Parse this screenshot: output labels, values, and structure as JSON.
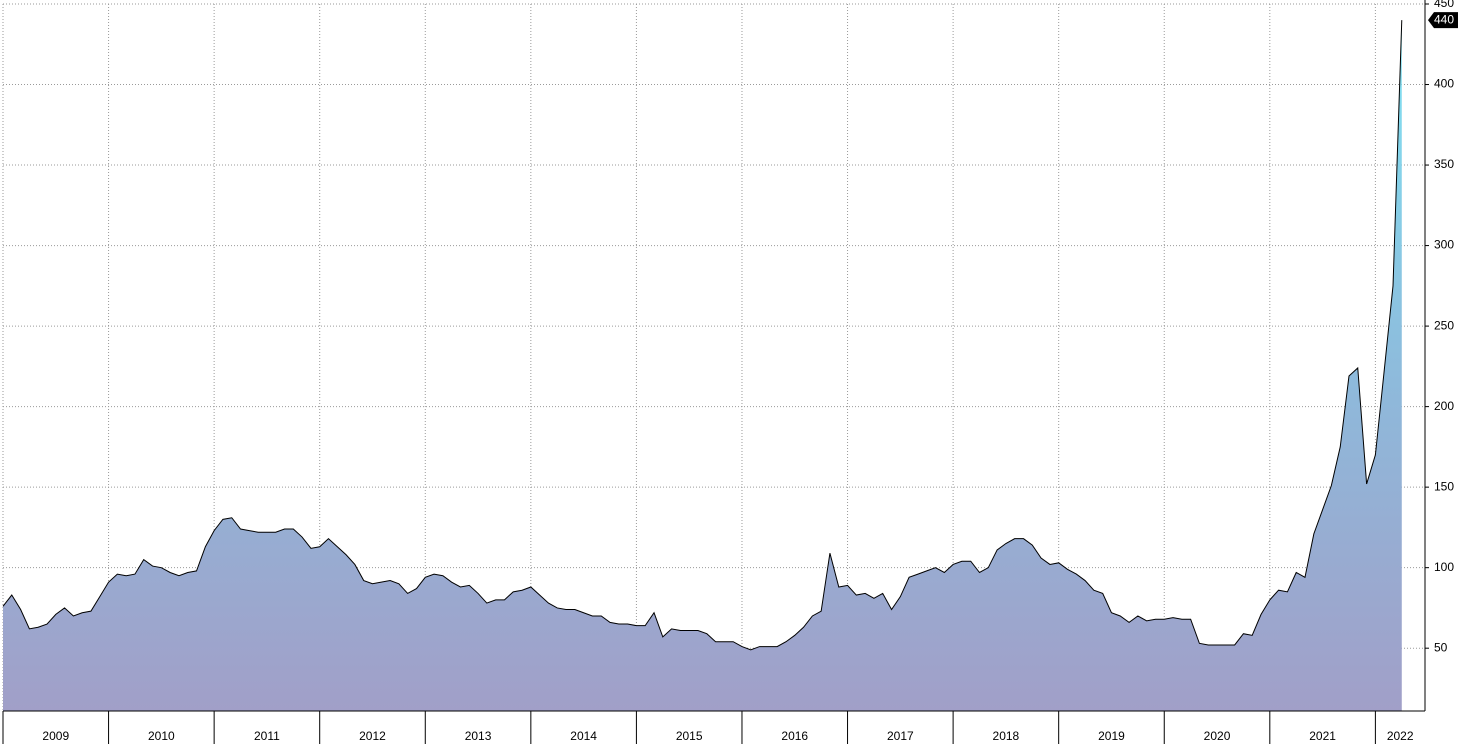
{
  "chart_data": {
    "type": "area",
    "x": [
      2009.0,
      2009.083,
      2009.167,
      2009.25,
      2009.333,
      2009.417,
      2009.5,
      2009.583,
      2009.667,
      2009.75,
      2009.833,
      2009.917,
      2010.0,
      2010.083,
      2010.167,
      2010.25,
      2010.333,
      2010.417,
      2010.5,
      2010.583,
      2010.667,
      2010.75,
      2010.833,
      2010.917,
      2011.0,
      2011.083,
      2011.167,
      2011.25,
      2011.333,
      2011.417,
      2011.5,
      2011.583,
      2011.667,
      2011.75,
      2011.833,
      2011.917,
      2012.0,
      2012.083,
      2012.167,
      2012.25,
      2012.333,
      2012.417,
      2012.5,
      2012.583,
      2012.667,
      2012.75,
      2012.833,
      2012.917,
      2013.0,
      2013.083,
      2013.167,
      2013.25,
      2013.333,
      2013.417,
      2013.5,
      2013.583,
      2013.667,
      2013.75,
      2013.833,
      2013.917,
      2014.0,
      2014.083,
      2014.167,
      2014.25,
      2014.333,
      2014.417,
      2014.5,
      2014.583,
      2014.667,
      2014.75,
      2014.833,
      2014.917,
      2015.0,
      2015.083,
      2015.167,
      2015.25,
      2015.333,
      2015.417,
      2015.5,
      2015.583,
      2015.667,
      2015.75,
      2015.833,
      2015.917,
      2016.0,
      2016.083,
      2016.167,
      2016.25,
      2016.333,
      2016.417,
      2016.5,
      2016.583,
      2016.667,
      2016.75,
      2016.833,
      2016.917,
      2017.0,
      2017.083,
      2017.167,
      2017.25,
      2017.333,
      2017.417,
      2017.5,
      2017.583,
      2017.667,
      2017.75,
      2017.833,
      2017.917,
      2018.0,
      2018.083,
      2018.167,
      2018.25,
      2018.333,
      2018.417,
      2018.5,
      2018.583,
      2018.667,
      2018.75,
      2018.833,
      2018.917,
      2019.0,
      2019.083,
      2019.167,
      2019.25,
      2019.333,
      2019.417,
      2019.5,
      2019.583,
      2019.667,
      2019.75,
      2019.833,
      2019.917,
      2020.0,
      2020.083,
      2020.167,
      2020.25,
      2020.333,
      2020.417,
      2020.5,
      2020.583,
      2020.667,
      2020.75,
      2020.833,
      2020.917,
      2021.0,
      2021.083,
      2021.167,
      2021.25,
      2021.333,
      2021.417,
      2021.5,
      2021.583,
      2021.667,
      2021.75,
      2021.833,
      2021.917,
      2022.0,
      2022.083,
      2022.167,
      2022.25
    ],
    "values": [
      76,
      83,
      74,
      62,
      63,
      65,
      71,
      75,
      70,
      72,
      73,
      82,
      91,
      96,
      95,
      96,
      105,
      101,
      100,
      97,
      95,
      97,
      98,
      113,
      123,
      130,
      131,
      124,
      123,
      122,
      122,
      122,
      124,
      124,
      119,
      112,
      113,
      118,
      113,
      108,
      102,
      92,
      90,
      91,
      92,
      90,
      84,
      87,
      94,
      96,
      95,
      91,
      88,
      89,
      84,
      78,
      80,
      80,
      85,
      86,
      88,
      83,
      78,
      75,
      74,
      74,
      72,
      70,
      70,
      66,
      65,
      65,
      64,
      64,
      72,
      57,
      62,
      61,
      61,
      61,
      59,
      54,
      54,
      54,
      51,
      49,
      51,
      51,
      51,
      54,
      58,
      63,
      70,
      73,
      109,
      88,
      89,
      83,
      84,
      81,
      84,
      74,
      82,
      94,
      96,
      98,
      100,
      97,
      102,
      104,
      104,
      97,
      100,
      111,
      115,
      118,
      118,
      114,
      106,
      102,
      103,
      99,
      96,
      92,
      86,
      84,
      72,
      70,
      66,
      70,
      67,
      68,
      68,
      69,
      68,
      68,
      53,
      52,
      52,
      52,
      52,
      59,
      58,
      71,
      80,
      86,
      85,
      97,
      94,
      121,
      136,
      151,
      175,
      219,
      224,
      152,
      170,
      222,
      275,
      440
    ],
    "color": "#a19fc8",
    "xlim": [
      2009,
      2022.47
    ],
    "xticks": [
      2009,
      2010,
      2011,
      2012,
      2013,
      2014,
      2015,
      2016,
      2017,
      2018,
      2019,
      2020,
      2021,
      2022
    ],
    "ylim": [
      11,
      450
    ],
    "yticks": [
      50,
      100,
      150,
      200,
      250,
      300,
      350,
      400,
      450
    ],
    "grid": true
  }
}
